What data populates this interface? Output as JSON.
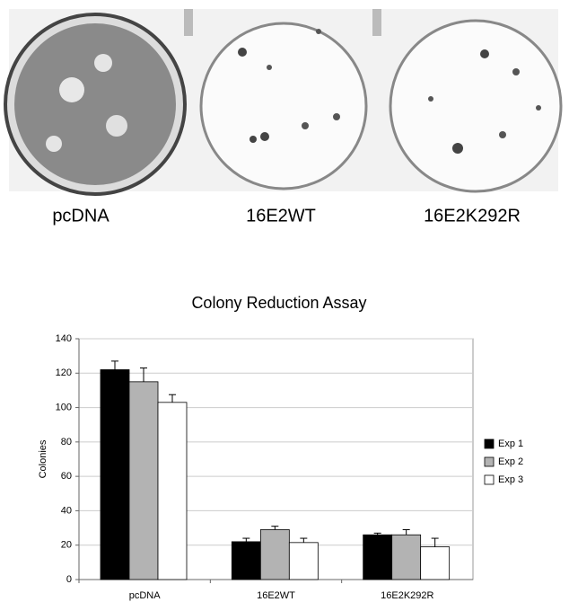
{
  "image_labels": [
    "pcDNA",
    "16E2WT",
    "16E2K292R"
  ],
  "chart_data": {
    "type": "bar",
    "title": "Colony Reduction Assay",
    "y_label": "Colonies",
    "categories": [
      "pcDNA",
      "16E2WT",
      "16E2K292R"
    ],
    "series": [
      {
        "name": "Exp 1",
        "color": "#000000",
        "values": [
          122,
          22,
          26
        ],
        "errors": [
          5,
          2,
          1
        ]
      },
      {
        "name": "Exp 2",
        "color": "#b3b3b3",
        "values": [
          115,
          29,
          26
        ],
        "errors": [
          8,
          2,
          3
        ]
      },
      {
        "name": "Exp 3",
        "color": "#ffffff",
        "values": [
          103,
          21.5,
          19
        ],
        "errors": [
          4.5,
          2.5,
          5
        ]
      }
    ],
    "ylim": [
      0,
      140
    ],
    "yticks": [
      0,
      20,
      40,
      60,
      80,
      100,
      120,
      140
    ],
    "grid": true,
    "legend": "right"
  }
}
